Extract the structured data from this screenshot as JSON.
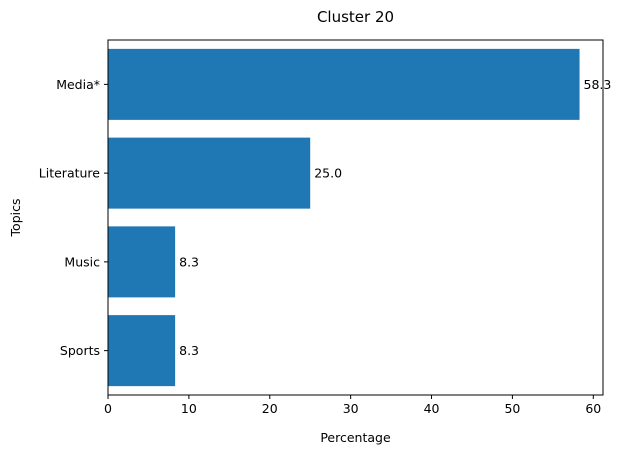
{
  "chart_data": {
    "type": "bar",
    "orientation": "horizontal",
    "title": "Cluster 20",
    "xlabel": "Percentage",
    "ylabel": "Topics",
    "categories": [
      "Media*",
      "Literature",
      "Music",
      "Sports"
    ],
    "values": [
      58.3,
      25.0,
      8.3,
      8.3
    ],
    "value_labels": [
      "58.3",
      "25.0",
      "8.3",
      "8.3"
    ],
    "xlim": [
      0,
      61.2
    ],
    "xticks": [
      0,
      10,
      20,
      30,
      40,
      50,
      60
    ],
    "grid": false,
    "bar_color": "#1f77b4"
  }
}
